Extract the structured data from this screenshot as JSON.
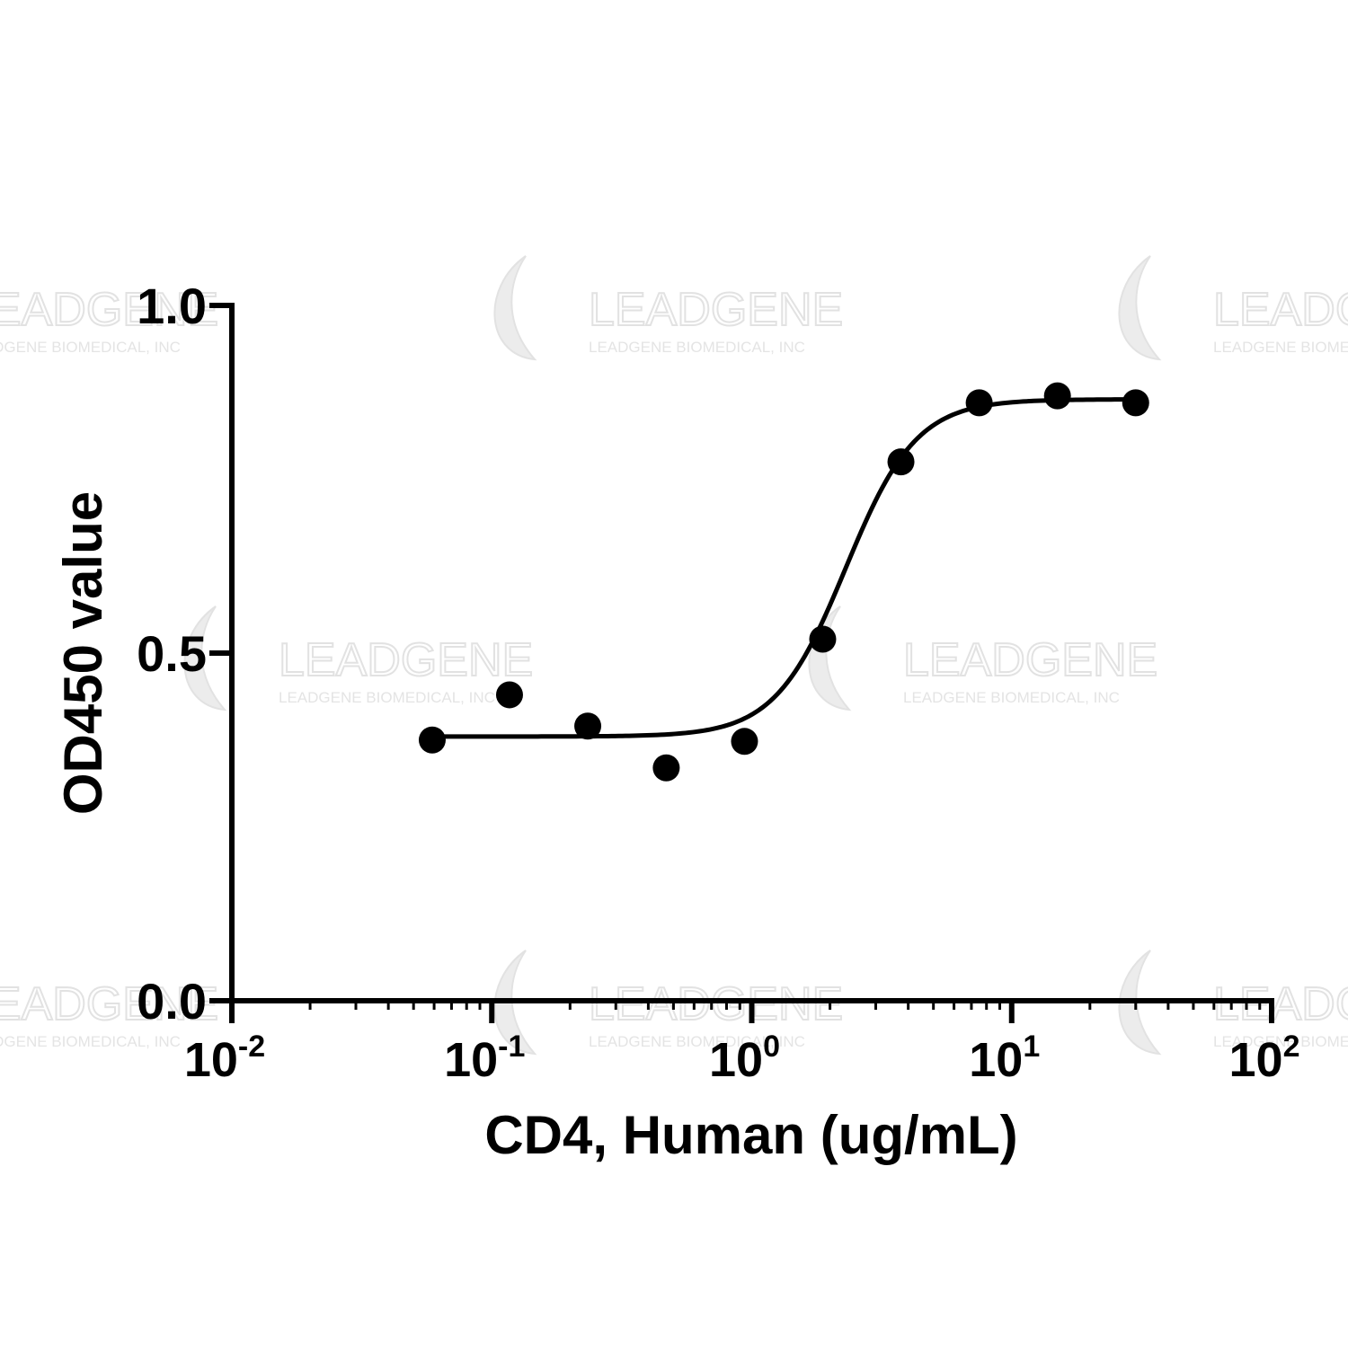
{
  "watermark": {
    "brand": "LEADGENE",
    "company": "LEADGENE BIOMEDICAL, INC"
  },
  "chart_data": {
    "type": "scatter",
    "xlabel": "CD4, Human (ug/mL)",
    "ylabel": "OD450 value",
    "x_scale": "log",
    "xlim": [
      0.01,
      100
    ],
    "ylim": [
      0,
      1.0
    ],
    "x_ticks": [
      {
        "value": 0.01,
        "base": "10",
        "exp": "-2"
      },
      {
        "value": 0.1,
        "base": "10",
        "exp": "-1"
      },
      {
        "value": 1,
        "base": "10",
        "exp": "0"
      },
      {
        "value": 10,
        "base": "10",
        "exp": "1"
      },
      {
        "value": 100,
        "base": "10",
        "exp": "2"
      }
    ],
    "y_ticks": [
      {
        "value": 0.0,
        "label": "0.0"
      },
      {
        "value": 0.5,
        "label": "0.5"
      },
      {
        "value": 1.0,
        "label": "1.0"
      }
    ],
    "points": [
      {
        "x": 0.059,
        "y": 0.375
      },
      {
        "x": 0.117,
        "y": 0.44
      },
      {
        "x": 0.234,
        "y": 0.395
      },
      {
        "x": 0.469,
        "y": 0.335
      },
      {
        "x": 0.938,
        "y": 0.373
      },
      {
        "x": 1.875,
        "y": 0.52
      },
      {
        "x": 3.75,
        "y": 0.775
      },
      {
        "x": 7.5,
        "y": 0.86
      },
      {
        "x": 15,
        "y": 0.87
      },
      {
        "x": 30,
        "y": 0.86
      }
    ],
    "fit": {
      "bottom": 0.38,
      "top": 0.865,
      "ec50": 2.3,
      "hill": 3.2
    },
    "grid": false,
    "colors": {
      "marks": "#000000",
      "watermark": "#e2e2e2"
    }
  }
}
